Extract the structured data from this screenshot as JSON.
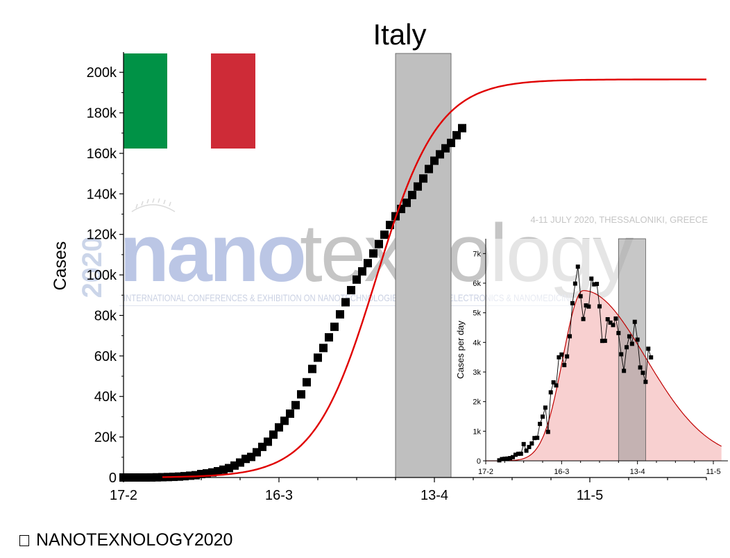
{
  "footer": {
    "text": "NANOTEXNOLOGY2020",
    "bullet_icon": "square-bullet-icon"
  },
  "watermark": {
    "wordmark_left": "nano",
    "wordmark_right": "texnology",
    "year": "2020",
    "dates": "4-11 JULY 2020, THESSALONIKI, GREECE",
    "tagline": "INTERNATIONAL CONFERENCES & EXHIBITION ON NANOTECHNOLOGIES - ORGANIC ELECTRONICS & NANOMEDICINE"
  },
  "flag": {
    "colors": [
      "#009246",
      "#ffffff",
      "#ce2b37"
    ]
  },
  "chart_data": [
    {
      "type": "scatter",
      "title": "Italy",
      "ylabel": "Cases",
      "xlabel": "",
      "x_tick_labels": [
        "17-2",
        "16-3",
        "13-4",
        "11-5"
      ],
      "x_tick_days": [
        0,
        28,
        56,
        84
      ],
      "y_tick_labels": [
        "0",
        "20k",
        "40k",
        "60k",
        "80k",
        "100k",
        "120k",
        "140k",
        "160k",
        "180k",
        "200k"
      ],
      "y_tick_values": [
        0,
        20000,
        40000,
        60000,
        80000,
        100000,
        120000,
        140000,
        160000,
        180000,
        200000
      ],
      "xlim_days": [
        0,
        105
      ],
      "ylim": [
        0,
        210000
      ],
      "shaded_range_days": [
        49,
        59
      ],
      "shade_color": "#bfbfbf",
      "fit_color": "#e00000",
      "fit": {
        "model": "logistic",
        "K": 196500,
        "r": 0.18,
        "t0_day": 45.5,
        "x_start_day": 7,
        "x_end_day": 105
      },
      "series": [
        {
          "marker": "square",
          "color": "#000000",
          "points": [
            [
              0,
              3
            ],
            [
              1,
              3
            ],
            [
              2,
              3
            ],
            [
              3,
              3
            ],
            [
              4,
              3
            ],
            [
              5,
              20
            ],
            [
              6,
              79
            ],
            [
              7,
              150
            ],
            [
              8,
              227
            ],
            [
              9,
              320
            ],
            [
              10,
              445
            ],
            [
              11,
              650
            ],
            [
              12,
              888
            ],
            [
              13,
              1128
            ],
            [
              14,
              1694
            ],
            [
              15,
              2036
            ],
            [
              16,
              2502
            ],
            [
              17,
              3089
            ],
            [
              18,
              3858
            ],
            [
              19,
              4636
            ],
            [
              20,
              5883
            ],
            [
              21,
              7375
            ],
            [
              22,
              9172
            ],
            [
              23,
              10149
            ],
            [
              24,
              12462
            ],
            [
              25,
              15113
            ],
            [
              26,
              17660
            ],
            [
              27,
              21157
            ],
            [
              28,
              24747
            ],
            [
              29,
              27980
            ],
            [
              30,
              31506
            ],
            [
              31,
              35713
            ],
            [
              32,
              41035
            ],
            [
              33,
              47021
            ],
            [
              34,
              53578
            ],
            [
              35,
              59138
            ],
            [
              36,
              63927
            ],
            [
              37,
              69176
            ],
            [
              38,
              74386
            ],
            [
              39,
              80539
            ],
            [
              40,
              86498
            ],
            [
              41,
              92472
            ],
            [
              42,
              97689
            ],
            [
              43,
              101739
            ],
            [
              44,
              105792
            ],
            [
              45,
              110574
            ],
            [
              46,
              115242
            ],
            [
              47,
              119827
            ],
            [
              48,
              124632
            ],
            [
              49,
              128948
            ],
            [
              50,
              132547
            ],
            [
              51,
              135586
            ],
            [
              52,
              139422
            ],
            [
              53,
              143626
            ],
            [
              54,
              147577
            ],
            [
              55,
              152271
            ],
            [
              56,
              156363
            ],
            [
              57,
              159516
            ],
            [
              58,
              162488
            ],
            [
              59,
              165155
            ],
            [
              60,
              168941
            ],
            [
              61,
              172434
            ]
          ]
        }
      ]
    },
    {
      "type": "area",
      "ylabel": "Cases per day",
      "xlabel": "",
      "x_tick_labels": [
        "17-2",
        "16-3",
        "13-4",
        "11-5"
      ],
      "x_tick_days": [
        0,
        28,
        56,
        84
      ],
      "y_tick_labels": [
        "0",
        "1k",
        "2k",
        "3k",
        "4k",
        "5k",
        "6k",
        "7k"
      ],
      "y_tick_values": [
        0,
        1000,
        2000,
        3000,
        4000,
        5000,
        6000,
        7000
      ],
      "xlim_days": [
        0,
        87
      ],
      "ylim": [
        0,
        7500
      ],
      "shaded_range_days": [
        49,
        59
      ],
      "shade_color": "#999999",
      "fit_color": "#c00000",
      "fill_color": "#f8d0d0",
      "fit": {
        "model": "skewed-peak",
        "peak": 5750,
        "peak_day": 36,
        "sigma_left": 7.5,
        "sigma_right": 23,
        "x_start_day": 0,
        "x_end_day": 87
      },
      "series": [
        {
          "marker": "square",
          "color": "#000000",
          "points": [
            [
              5,
              17
            ],
            [
              6,
              59
            ],
            [
              7,
              71
            ],
            [
              8,
              77
            ],
            [
              9,
              93
            ],
            [
              10,
              125
            ],
            [
              11,
              205
            ],
            [
              12,
              238
            ],
            [
              13,
              240
            ],
            [
              14,
              566
            ],
            [
              15,
              342
            ],
            [
              16,
              466
            ],
            [
              17,
              587
            ],
            [
              18,
              769
            ],
            [
              19,
              778
            ],
            [
              20,
              1247
            ],
            [
              21,
              1492
            ],
            [
              22,
              1797
            ],
            [
              23,
              977
            ],
            [
              24,
              2313
            ],
            [
              25,
              2651
            ],
            [
              26,
              2547
            ],
            [
              27,
              3497
            ],
            [
              28,
              3590
            ],
            [
              29,
              3233
            ],
            [
              30,
              3526
            ],
            [
              31,
              4207
            ],
            [
              32,
              5322
            ],
            [
              33,
              5986
            ],
            [
              34,
              6557
            ],
            [
              35,
              5560
            ],
            [
              36,
              4789
            ],
            [
              37,
              5249
            ],
            [
              38,
              5210
            ],
            [
              39,
              6153
            ],
            [
              40,
              5959
            ],
            [
              41,
              5974
            ],
            [
              42,
              5217
            ],
            [
              43,
              4050
            ],
            [
              44,
              4053
            ],
            [
              45,
              4782
            ],
            [
              46,
              4668
            ],
            [
              47,
              4585
            ],
            [
              48,
              4805
            ],
            [
              49,
              4316
            ],
            [
              50,
              3599
            ],
            [
              51,
              3039
            ],
            [
              52,
              3836
            ],
            [
              53,
              4204
            ],
            [
              54,
              3951
            ],
            [
              55,
              4694
            ],
            [
              56,
              4092
            ],
            [
              57,
              3153
            ],
            [
              58,
              2972
            ],
            [
              59,
              2667
            ],
            [
              60,
              3786
            ],
            [
              61,
              3493
            ]
          ]
        }
      ]
    }
  ]
}
